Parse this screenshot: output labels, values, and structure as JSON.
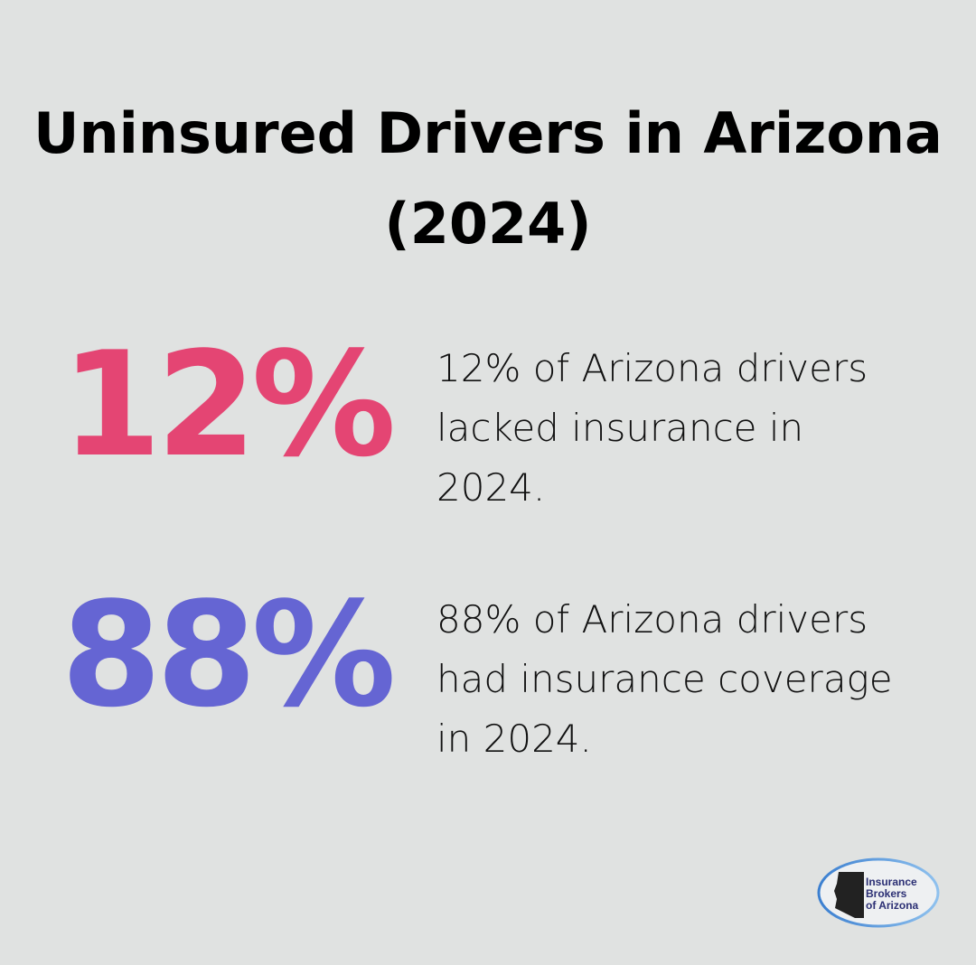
{
  "title": "Uninsured Drivers in Arizona (2024)",
  "stats": [
    {
      "value": "12%",
      "description": "12% of Arizona drivers lacked insurance in 2024.",
      "color": "#e44573"
    },
    {
      "value": "88%",
      "description": "88% of Arizona drivers had insurance coverage in 2024.",
      "color": "#6565d3"
    }
  ],
  "logo": {
    "text_line1": "Insurance",
    "text_line2": "Brokers",
    "text_line3": "of Arizona"
  }
}
